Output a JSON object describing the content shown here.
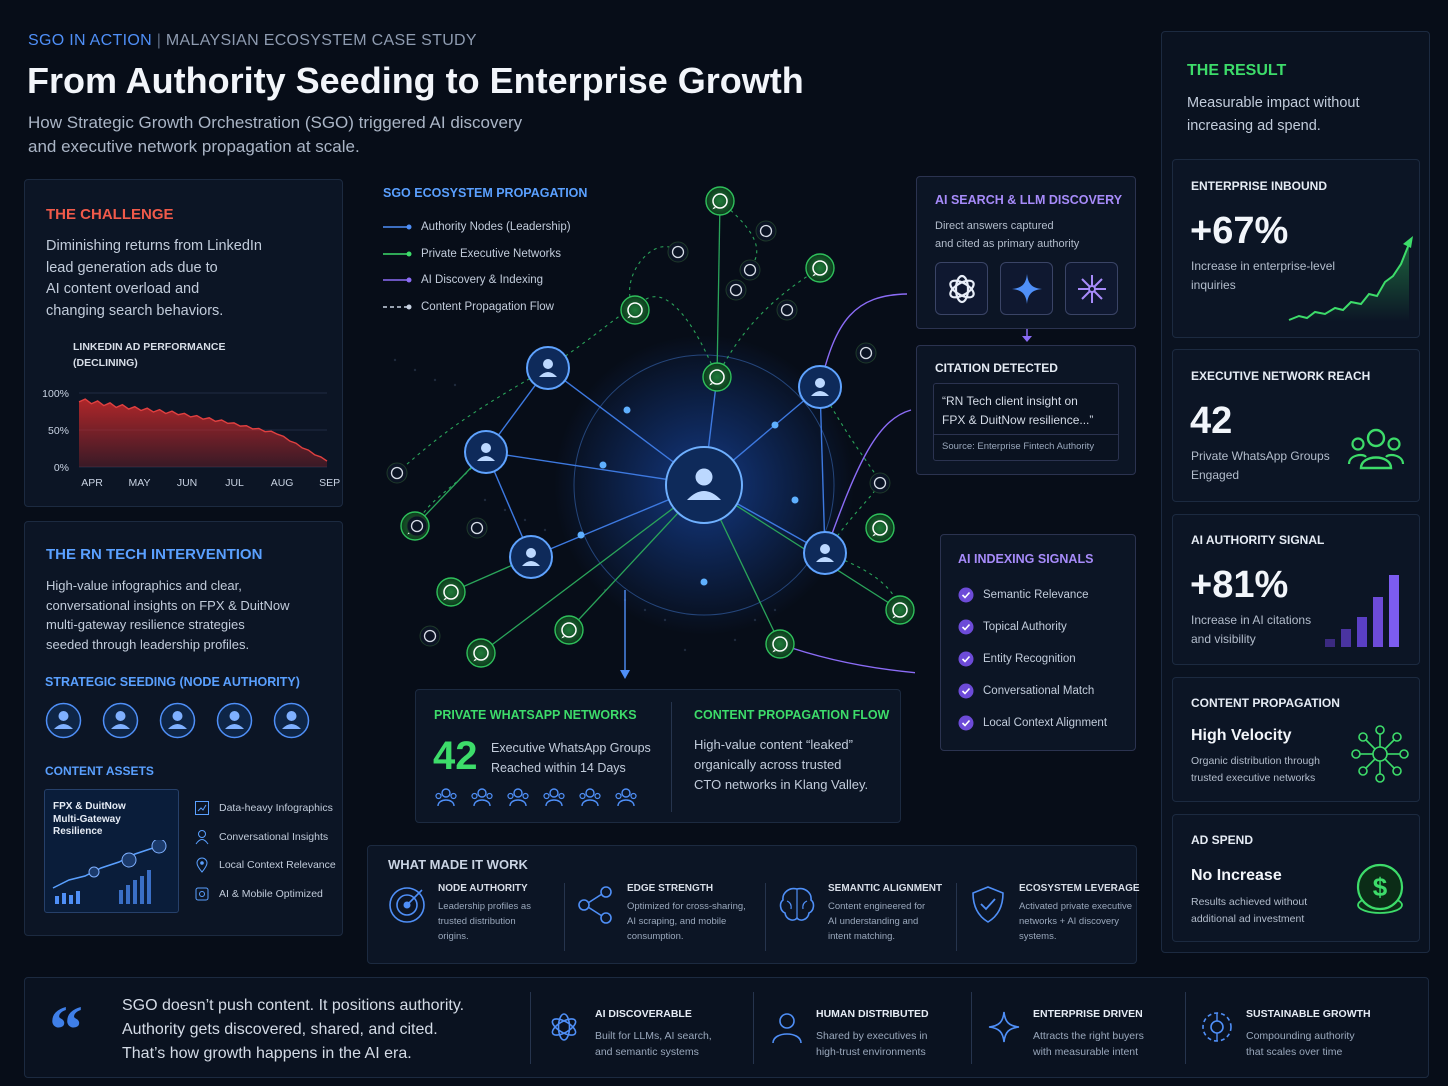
{
  "header": {
    "kicker_a": "SGO",
    "kicker_b": "IN ACTION",
    "kicker_c": "MALAYSIAN ECOSYSTEM CASE STUDY",
    "title": "From Authority Seeding to Enterprise Growth",
    "subtitle_1": "How Strategic Growth Orchestration (SGO) triggered AI discovery",
    "subtitle_2": "and executive network propagation at scale."
  },
  "challenge": {
    "title": "THE CHALLENGE",
    "lines": [
      "Diminishing returns from LinkedIn",
      "lead generation ads due to",
      "AI content overload and",
      "changing search behaviors."
    ],
    "chart_title_1": "LINKEDIN AD PERFORMANCE",
    "chart_title_2": "(DECLINING)"
  },
  "chart_data": {
    "type": "area",
    "title": "LINKEDIN AD PERFORMANCE (DECLINING)",
    "categories": [
      "APR",
      "MAY",
      "JUN",
      "JUL",
      "AUG",
      "SEP"
    ],
    "values": [
      90,
      80,
      72,
      60,
      45,
      8
    ],
    "ylim": [
      0,
      100
    ],
    "y_ticks": [
      "100%",
      "50%",
      "0%"
    ],
    "color": "#c0282a"
  },
  "intervention": {
    "title": "THE RN TECH INTERVENTION",
    "lines": [
      "High-value infographics and clear,",
      "conversational insights on FPX & DuitNow",
      "multi-gateway resilience strategies",
      "seeded through leadership profiles."
    ],
    "seeding_title": "STRATEGIC SEEDING (NODE AUTHORITY)",
    "assets_title": "CONTENT ASSETS",
    "thumb_1": "FPX & DuitNow",
    "thumb_2": "Multi-Gateway",
    "thumb_3": "Resilience",
    "assets": [
      "Data-heavy Infographics",
      "Conversational Insights",
      "Local Context Relevance",
      "AI & Mobile Optimized"
    ]
  },
  "propagation": {
    "title": "SGO ECOSYSTEM PROPAGATION",
    "legend": [
      {
        "label": "Authority Nodes (Leadership)",
        "color": "#4f8ff7"
      },
      {
        "label": "Private Executive Networks",
        "color": "#3ddc6a"
      },
      {
        "label": "AI Discovery & Indexing",
        "color": "#8b6cf6"
      },
      {
        "label": "Content Propagation Flow",
        "color": "#c9d3e3"
      }
    ]
  },
  "ai_search": {
    "title": "AI SEARCH & LLM DISCOVERY",
    "line_1": "Direct answers captured",
    "line_2": "and cited as primary authority"
  },
  "citation": {
    "title": "CITATION DETECTED",
    "quote_1": "“RN Tech client insight on",
    "quote_2": "FPX & DuitNow resilience...”",
    "source": "Source: Enterprise Fintech Authority"
  },
  "indexing": {
    "title": "AI INDEXING SIGNALS",
    "items": [
      "Semantic Relevance",
      "Topical Authority",
      "Entity Recognition",
      "Conversational Match",
      "Local Context Alignment"
    ]
  },
  "whatsapp": {
    "title": "PRIVATE WHATSAPP NETWORKS",
    "number": "42",
    "line_1": "Executive WhatsApp Groups",
    "line_2": "Reached within 14 Days"
  },
  "flow": {
    "title": "CONTENT PROPAGATION FLOW",
    "lines": [
      "High-value content “leaked”",
      "organically across trusted",
      "CTO networks in Klang Valley."
    ]
  },
  "made_it_work": {
    "title": "WHAT MADE IT WORK",
    "items": [
      {
        "title": "NODE AUTHORITY",
        "lines": [
          "Leadership profiles as",
          "trusted distribution",
          "origins."
        ]
      },
      {
        "title": "EDGE STRENGTH",
        "lines": [
          "Optimized for cross-sharing,",
          "AI scraping, and mobile",
          "consumption."
        ]
      },
      {
        "title": "SEMANTIC ALIGNMENT",
        "lines": [
          "Content engineered for",
          "AI understanding and",
          "intent matching."
        ]
      },
      {
        "title": "ECOSYSTEM LEVERAGE",
        "lines": [
          "Activated private executive",
          "networks + AI discovery",
          "systems."
        ]
      }
    ]
  },
  "result": {
    "title": "THE RESULT",
    "line_1": "Measurable impact without",
    "line_2": "increasing ad spend.",
    "cards": [
      {
        "label": "ENTERPRISE INBOUND",
        "value": "+67%",
        "desc_1": "Increase in enterprise-level",
        "desc_2": "inquiries"
      },
      {
        "label": "EXECUTIVE NETWORK REACH",
        "value": "42",
        "desc_1": "Private WhatsApp Groups",
        "desc_2": "Engaged"
      },
      {
        "label": "AI AUTHORITY SIGNAL",
        "value": "+81%",
        "desc_1": "Increase in AI citations",
        "desc_2": "and visibility"
      },
      {
        "label": "CONTENT PROPAGATION",
        "value": "High Velocity",
        "desc_1": "Organic distribution through",
        "desc_2": "trusted executive networks"
      },
      {
        "label": "AD SPEND",
        "value": "No Increase",
        "desc_1": "Results achieved without",
        "desc_2": "additional ad investment"
      }
    ]
  },
  "footer": {
    "quote_1": "SGO doesn’t push content. It positions authority.",
    "quote_2": "Authority gets discovered, shared, and cited.",
    "quote_3": "That’s how growth happens in the AI era.",
    "items": [
      {
        "title": "AI DISCOVERABLE",
        "line_1": "Built for LLMs, AI search,",
        "line_2": "and semantic systems"
      },
      {
        "title": "HUMAN DISTRIBUTED",
        "line_1": "Shared by executives in",
        "line_2": "high-trust environments"
      },
      {
        "title": "ENTERPRISE DRIVEN",
        "line_1": "Attracts the right buyers",
        "line_2": "with measurable intent"
      },
      {
        "title": "SUSTAINABLE GROWTH",
        "line_1": "Compounding authority",
        "line_2": "that scales over time"
      }
    ]
  }
}
